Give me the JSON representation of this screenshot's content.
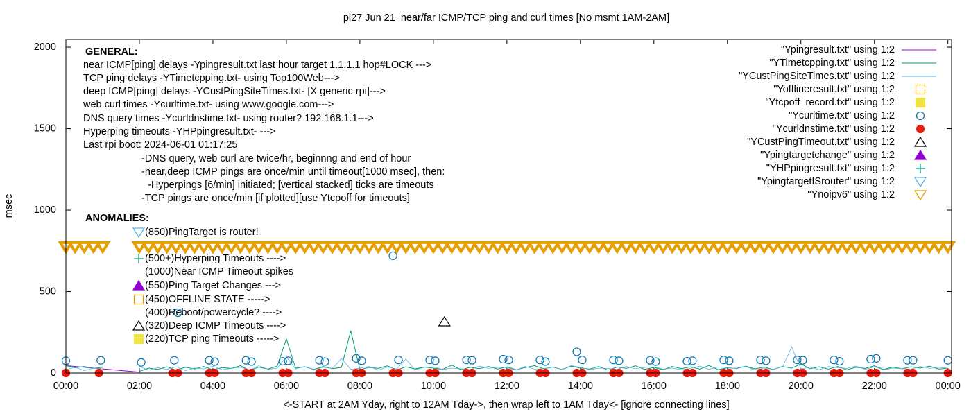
{
  "chart_data": {
    "type": "line",
    "title": "pi27 Jun 21  near/far ICMP/TCP ping and curl times [No msmt 1AM-2AM]",
    "xlabel": "<-START at 2AM Yday, right to 12AM Tday->, then wrap left to 1AM Tday<- [ignore connecting lines]",
    "ylabel": "msec",
    "xlim": [
      0,
      24.1
    ],
    "ylim": [
      0,
      2047
    ],
    "xticks": [
      {
        "value": 0,
        "label": "00:00"
      },
      {
        "value": 2,
        "label": "02:00"
      },
      {
        "value": 4,
        "label": "04:00"
      },
      {
        "value": 6,
        "label": "06:00"
      },
      {
        "value": 8,
        "label": "08:00"
      },
      {
        "value": 10,
        "label": "10:00"
      },
      {
        "value": 12,
        "label": "12:00"
      },
      {
        "value": 14,
        "label": "14:00"
      },
      {
        "value": 16,
        "label": "16:00"
      },
      {
        "value": 18,
        "label": "18:00"
      },
      {
        "value": 20,
        "label": "20:00"
      },
      {
        "value": 22,
        "label": "22:00"
      },
      {
        "value": 24,
        "label": "00:00"
      }
    ],
    "yticks": [
      0,
      500,
      1000,
      1500,
      2000
    ],
    "legend": "top-right",
    "annotations": [
      "GENERAL:",
      "near ICMP[ping] delays -Ypingresult.txt last hour target 1.1.1.1 hop#LOCK --->",
      "TCP ping delays -YTimetcpping.txt- using Top100Web--->",
      "deep ICMP[ping] delays -YCustPingSiteTimes.txt- [X generic rpi]--->",
      "web curl times -Ycurltime.txt- using www.google.com--->",
      "DNS query times -Ycurldnstime.txt- using router? 192.168.1.1--->",
      "Hyperping timeouts -YHPpingresult.txt- --->",
      "Last rpi boot: 2024-06-01 01:17:25",
      "-DNS query, web curl are twice/hr, beginnng and end of hour",
      "-near,deep ICMP pings are once/min until timeout[1000 msec], then:",
      "-Hyperpings [6/min] initiated; [vertical stacked] ticks are timeouts",
      "-TCP pings are once/min [if plotted][use Ytcpoff for timeouts]",
      "ANOMALIES:",
      "(850)PingTarget is router!",
      "(500+)Hyperping Timeouts ---->",
      "(1000)Near ICMP Timeout spikes",
      "(550)Ping Target Changes --->",
      "(450)OFFLINE STATE ----->",
      "(400)Reboot/powercycle? ---->",
      "(320)Deep ICMP Timeouts ---->",
      "(220)TCP ping Timeouts ----->"
    ],
    "series": [
      {
        "name": "\"Ypingresult.txt\" using 1:2",
        "color": "#9400d3",
        "marker": "line",
        "x": [
          0,
          2
        ],
        "values": [
          45,
          5
        ]
      },
      {
        "name": "\"YTimetcpping.txt\" using 1:2",
        "color": "#009e73",
        "marker": "line",
        "x": [
          0,
          0.25,
          0.5,
          0.75,
          1,
          1.25,
          1.5,
          1.75,
          2,
          2.25,
          2.5,
          2.75,
          3,
          3.25,
          3.5,
          3.75,
          4,
          4.25,
          4.5,
          4.75,
          5,
          5.25,
          5.5,
          5.75,
          6,
          6.25,
          6.5,
          6.75,
          7,
          7.25,
          7.5,
          7.75,
          8,
          8.25,
          8.5,
          8.75,
          9,
          9.25,
          9.5,
          9.75,
          10,
          10.25,
          10.5,
          10.75,
          11,
          11.25,
          11.5,
          11.75,
          12,
          12.25,
          12.5,
          12.75,
          13,
          13.25,
          13.5,
          13.75,
          14,
          14.25,
          14.5,
          14.75,
          15,
          15.25,
          15.5,
          15.75,
          16,
          16.25,
          16.5,
          16.75,
          17,
          17.25,
          17.5,
          17.75,
          18,
          18.25,
          18.5,
          18.75,
          19,
          19.25,
          19.5,
          19.75,
          20,
          20.25,
          20.5,
          20.75,
          21,
          21.25,
          21.5,
          21.75,
          22,
          22.25,
          22.5,
          22.75,
          23,
          23.25,
          23.5,
          23.75,
          24
        ],
        "values": [
          45,
          32,
          40,
          28,
          35,
          null,
          null,
          null,
          10,
          30,
          22,
          38,
          18,
          35,
          25,
          40,
          20,
          33,
          28,
          45,
          15,
          36,
          24,
          42,
          210,
          30,
          38,
          22,
          40,
          26,
          35,
          260,
          20,
          34,
          28,
          44,
          18,
          38,
          25,
          36,
          30,
          22,
          48,
          20,
          35,
          27,
          40,
          24,
          38,
          20,
          33,
          45,
          26,
          36,
          22,
          42,
          30,
          24,
          40,
          18,
          36,
          28,
          44,
          22,
          34,
          20,
          40,
          27,
          38,
          24,
          46,
          20,
          32,
          28,
          42,
          25,
          36,
          22,
          40,
          30,
          55,
          26,
          38,
          24,
          40,
          20,
          35,
          28,
          44,
          22,
          36,
          26,
          38,
          30,
          42,
          24,
          30
        ]
      },
      {
        "name": "\"YCustPingSiteTimes.txt\" using 1:2",
        "color": "#56b4e9",
        "marker": "line",
        "x": [
          0,
          0.25,
          0.5,
          0.75,
          1,
          1.25,
          1.5,
          1.75,
          2,
          2.25,
          2.5,
          2.75,
          3,
          3.25,
          3.5,
          3.75,
          4,
          4.25,
          4.5,
          4.75,
          5,
          5.25,
          5.5,
          5.75,
          6,
          6.25,
          6.5,
          6.75,
          7,
          7.25,
          7.5,
          7.75,
          8,
          8.25,
          8.5,
          8.75,
          9,
          9.25,
          9.5,
          9.75,
          10,
          10.25,
          10.5,
          10.75,
          11,
          11.25,
          11.5,
          11.75,
          12,
          12.25,
          12.5,
          12.75,
          13,
          13.25,
          13.5,
          13.75,
          14,
          14.25,
          14.5,
          14.75,
          15,
          15.25,
          15.5,
          15.75,
          16,
          16.25,
          16.5,
          16.75,
          17,
          17.25,
          17.5,
          17.75,
          18,
          18.25,
          18.5,
          18.75,
          19,
          19.25,
          19.5,
          19.75,
          20,
          20.25,
          20.5,
          20.75,
          21,
          21.25,
          21.5,
          21.75,
          22,
          22.25,
          22.5,
          22.75,
          23,
          23.25,
          23.5,
          23.75,
          24
        ],
        "values": [
          20,
          35,
          15,
          30,
          25,
          null,
          null,
          null,
          40,
          18,
          32,
          22,
          38,
          15,
          30,
          25,
          42,
          20,
          28,
          35,
          18,
          45,
          22,
          30,
          100,
          25,
          40,
          20,
          35,
          28,
          90,
          22,
          30,
          40,
          18,
          36,
          25,
          85,
          20,
          34,
          38,
          22,
          30,
          26,
          20,
          42,
          28,
          35,
          32,
          18,
          40,
          24,
          26,
          38,
          22,
          45,
          35,
          20,
          30,
          28,
          22,
          40,
          26,
          34,
          38,
          24,
          30,
          20,
          28,
          42,
          22,
          36,
          34,
          26,
          40,
          18,
          30,
          22,
          38,
          160,
          25,
          35,
          20,
          40,
          32,
          28,
          42,
          22,
          38,
          20,
          30,
          26,
          24,
          40,
          28,
          35,
          30
        ]
      },
      {
        "name": "\"Yofflineresult.txt\" using 1:2",
        "color": "#e69f00",
        "marker": "square-open",
        "x": [],
        "values": []
      },
      {
        "name": "\"Ytcpoff_record.txt\" using 1:2",
        "color": "#f0e442",
        "marker": "square-filled",
        "x": [],
        "values": []
      },
      {
        "name": "\"Ycurltime.txt\" using 1:2",
        "color": "#0072b2",
        "marker": "circle-open",
        "x": [
          0,
          0.95,
          2.05,
          2.95,
          3.05,
          3.9,
          4.05,
          4.9,
          5.05,
          5.9,
          6.05,
          6.9,
          7.05,
          7.9,
          8.05,
          8.9,
          9.05,
          9.9,
          10.05,
          10.9,
          11.05,
          11.9,
          12.05,
          12.9,
          13.05,
          13.9,
          14.05,
          14.9,
          15.05,
          15.9,
          16.05,
          16.9,
          17.05,
          17.9,
          18.05,
          18.9,
          19.05,
          19.9,
          20.05,
          20.9,
          21.05,
          21.9,
          22.05,
          22.9,
          23.05,
          24
        ],
        "values": [
          75,
          78,
          65,
          78,
          370,
          78,
          70,
          78,
          70,
          72,
          75,
          78,
          70,
          90,
          75,
          720,
          80,
          80,
          75,
          80,
          78,
          85,
          80,
          80,
          70,
          130,
          80,
          80,
          75,
          78,
          70,
          72,
          75,
          80,
          75,
          80,
          75,
          80,
          78,
          80,
          72,
          85,
          90,
          78,
          78,
          78
        ]
      },
      {
        "name": "\"Ycurldnstime.txt\" using 1:2",
        "color": "#e51e10",
        "marker": "circle-filled",
        "x": [
          0,
          0.9,
          2.9,
          3.05,
          3.9,
          4.05,
          4.9,
          5.05,
          5.9,
          6.05,
          6.9,
          7.05,
          7.9,
          8.05,
          8.9,
          9.05,
          9.9,
          10.05,
          10.9,
          11.05,
          11.9,
          12.05,
          12.9,
          13.05,
          13.9,
          14.05,
          14.9,
          15.05,
          15.9,
          16.05,
          16.9,
          17.05,
          17.9,
          18.05,
          18.9,
          19.05,
          19.9,
          20.05,
          20.9,
          21.05,
          21.9,
          22.05,
          22.9,
          23.05,
          24
        ],
        "values": [
          0,
          0,
          0,
          0,
          0,
          0,
          0,
          0,
          0,
          0,
          0,
          0,
          0,
          0,
          0,
          0,
          0,
          0,
          0,
          0,
          0,
          0,
          0,
          0,
          0,
          0,
          0,
          0,
          0,
          0,
          0,
          0,
          0,
          0,
          0,
          0,
          0,
          0,
          0,
          0,
          0,
          0,
          0,
          0,
          0
        ]
      },
      {
        "name": "\"YCustPingTimeout.txt\" using 1:2",
        "color": "#000000",
        "marker": "triangle-open",
        "x": [
          10.3
        ],
        "values": [
          315
        ]
      },
      {
        "name": "\"Ypingtargetchange\" using 1:2",
        "color": "#9400d3",
        "marker": "triangle-filled",
        "x": [],
        "values": []
      },
      {
        "name": "\"YHPpingresult.txt\" using 1:2",
        "color": "#009e73",
        "marker": "plus",
        "x": [],
        "values": []
      },
      {
        "name": "\"YpingtargetISrouter\" using 1:2",
        "color": "#56b4e9",
        "marker": "triangle-down-open",
        "x": [],
        "values": []
      },
      {
        "name": "\"Ynoipv6\" using 1:2",
        "color": "#e69f00",
        "marker": "triangle-down-open",
        "x": [
          0,
          0.25,
          0.5,
          0.75,
          1,
          2,
          2.25,
          2.5,
          2.75,
          3,
          3.25,
          3.5,
          3.75,
          4,
          4.25,
          4.5,
          4.75,
          5,
          5.25,
          5.5,
          5.75,
          6,
          6.25,
          6.5,
          6.75,
          7,
          7.25,
          7.5,
          7.75,
          8,
          8.25,
          8.5,
          8.75,
          9,
          9.25,
          9.5,
          9.75,
          10,
          10.25,
          10.5,
          10.75,
          11,
          11.25,
          11.5,
          11.75,
          12,
          12.25,
          12.5,
          12.75,
          13,
          13.25,
          13.5,
          13.75,
          14,
          14.25,
          14.5,
          14.75,
          15,
          15.25,
          15.5,
          15.75,
          16,
          16.25,
          16.5,
          16.75,
          17,
          17.25,
          17.5,
          17.75,
          18,
          18.25,
          18.5,
          18.75,
          19,
          19.25,
          19.5,
          19.75,
          20,
          20.25,
          20.5,
          20.75,
          21,
          21.25,
          21.5,
          21.75,
          22,
          22.25,
          22.5,
          22.75,
          23,
          23.25,
          23.5,
          23.75,
          24
        ],
        "values": [
          775,
          775,
          775,
          775,
          775,
          775,
          775,
          775,
          775,
          775,
          775,
          775,
          775,
          775,
          775,
          775,
          775,
          775,
          775,
          775,
          775,
          775,
          775,
          775,
          775,
          775,
          775,
          775,
          775,
          775,
          775,
          775,
          775,
          775,
          775,
          775,
          775,
          775,
          775,
          775,
          775,
          775,
          775,
          775,
          775,
          775,
          775,
          775,
          775,
          775,
          775,
          775,
          775,
          775,
          775,
          775,
          775,
          775,
          775,
          775,
          775,
          775,
          775,
          775,
          775,
          775,
          775,
          775,
          775,
          775,
          775,
          775,
          775,
          775,
          775,
          775,
          775,
          775,
          775,
          775,
          775,
          775,
          775,
          775,
          775,
          775,
          775,
          775,
          775,
          775,
          775,
          775,
          775,
          775
        ]
      }
    ]
  }
}
